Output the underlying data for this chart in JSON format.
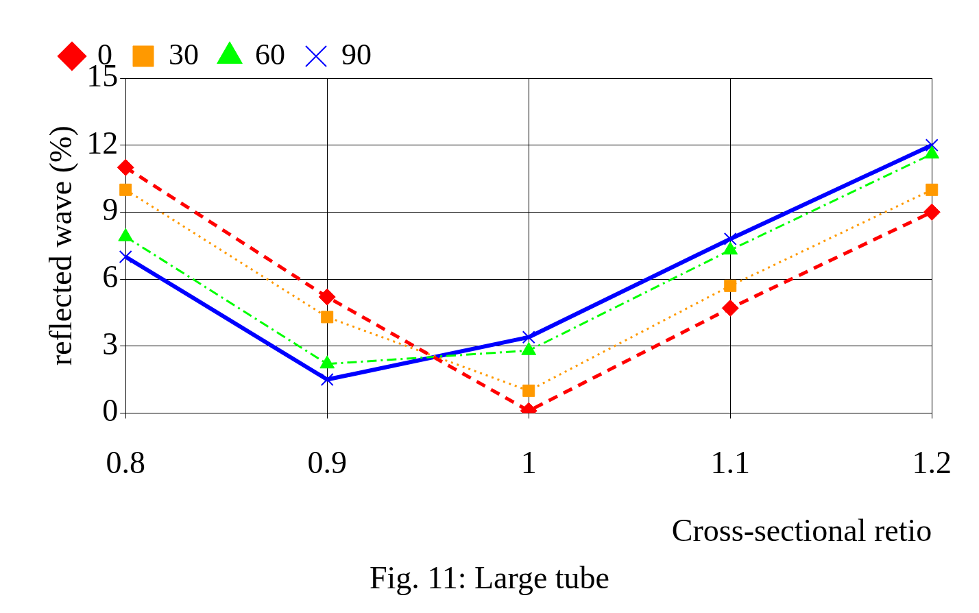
{
  "chart_data": {
    "type": "line",
    "title": "Fig. 11: Large tube",
    "xlabel": "Cross-sectional retio",
    "ylabel": "reflected wave (%)",
    "categories": [
      "0.8",
      "0.9",
      "1",
      "1.1",
      "1.2"
    ],
    "series": [
      {
        "name": "0",
        "color": "#ff0000",
        "values": [
          11,
          5.2,
          0.1,
          4.7,
          9.0
        ],
        "marker": "diamond",
        "line_style": "dashed"
      },
      {
        "name": "30",
        "color": "#ff9900",
        "values": [
          10.0,
          4.3,
          1.0,
          5.7,
          10.0
        ],
        "marker": "square",
        "line_style": "dotted"
      },
      {
        "name": "60",
        "color": "#00ff00",
        "values": [
          7.9,
          2.2,
          2.8,
          7.3,
          11.6
        ],
        "marker": "triangle",
        "line_style": "dashdot"
      },
      {
        "name": "90",
        "color": "#0000ff",
        "values": [
          7.0,
          1.5,
          3.4,
          7.8,
          12.0
        ],
        "marker": "cross",
        "line_style": "solid"
      }
    ],
    "ylim": [
      0,
      15
    ],
    "yticks": [
      0,
      3,
      6,
      9,
      12,
      15
    ],
    "grid": true,
    "legend": "top left"
  }
}
